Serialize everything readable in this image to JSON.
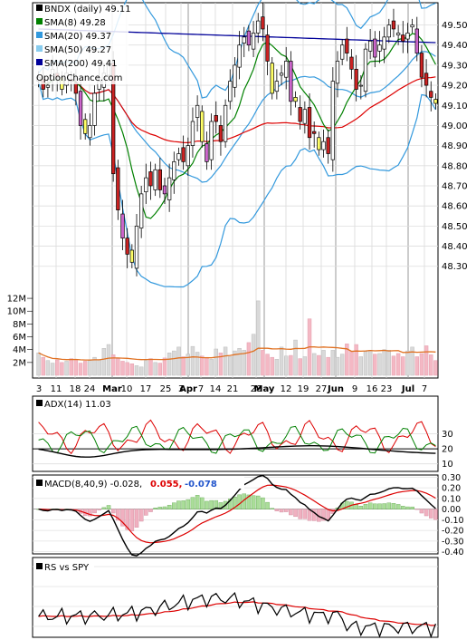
{
  "chart_data": [
    {
      "type": "candlestick",
      "title": "BNDX (daily) 49.11",
      "watermark": "OptionChance.com",
      "legend": [
        {
          "label": "BNDX (daily) 49.11",
          "color": "#000000"
        },
        {
          "label": "SMA(8) 49.28",
          "color": "#008000"
        },
        {
          "label": "SMA(20) 49.37",
          "color": "#3399dd"
        },
        {
          "label": "SMA(50) 49.27",
          "color": "#88ccee"
        },
        {
          "label": "SMA(200) 49.41",
          "color": "#000099"
        }
      ],
      "y_ticks": [
        "49.50",
        "49.40",
        "49.30",
        "49.20",
        "49.10",
        "49.00",
        "48.90",
        "48.80",
        "48.70",
        "48.60",
        "48.50",
        "48.40",
        "48.30"
      ],
      "ylim": [
        48.15,
        49.57
      ],
      "x_ticks": [
        "3",
        "11",
        "18",
        "24",
        "Mar",
        "10",
        "17",
        "25",
        "3",
        "Apr",
        "7",
        "14",
        "21",
        "28",
        "May",
        "12",
        "19",
        "27",
        "Jun",
        "9",
        "16",
        "23",
        "Jul",
        "7"
      ],
      "x_tick_bold": [
        "Mar",
        "Apr",
        "May",
        "Jun",
        "Jul"
      ],
      "volume_ticks": [
        "12M",
        "10M",
        "8M",
        "6M",
        "4M",
        "2M"
      ],
      "volume_lim": [
        0,
        13000000
      ],
      "close": [
        49.24,
        49.18,
        49.2,
        49.28,
        49.24,
        49.18,
        49.26,
        49.22,
        49.16,
        49.0,
        48.96,
        49.0,
        49.16,
        49.22,
        49.26,
        49.3,
        48.76,
        48.58,
        48.44,
        48.36,
        48.32,
        48.5,
        48.66,
        48.74,
        48.7,
        48.78,
        48.68,
        48.66,
        48.74,
        48.82,
        48.86,
        48.82,
        48.9,
        49.02,
        49.1,
        48.92,
        48.82,
        49.02,
        49.02,
        48.92,
        49.1,
        49.22,
        49.3,
        49.4,
        49.44,
        49.4,
        49.46,
        49.52,
        49.48,
        49.32,
        49.16,
        49.22,
        49.26,
        49.32,
        49.12,
        49.12,
        49.02,
        49.08,
        48.94,
        48.96,
        48.88,
        48.92,
        48.86,
        49.22,
        49.32,
        49.4,
        49.36,
        49.28,
        49.18,
        49.2,
        49.38,
        49.42,
        49.34,
        49.4,
        49.44,
        49.5,
        49.48,
        49.46,
        49.42,
        49.46,
        49.5,
        49.36,
        49.24,
        49.2,
        49.14,
        49.11
      ],
      "volume": [
        3.5,
        2.8,
        2.3,
        1.9,
        2.4,
        2.0,
        2.2,
        2.6,
        2.5,
        1.9,
        2.2,
        2.3,
        2.8,
        2.4,
        4.2,
        4.8,
        3.2,
        2.6,
        2.2,
        2.0,
        1.8,
        1.5,
        1.3,
        2.3,
        2.6,
        2.0,
        1.9,
        2.7,
        3.5,
        3.8,
        4.4,
        2.9,
        3.3,
        4.5,
        3.6,
        3.0,
        2.8,
        2.5,
        4.1,
        3.5,
        4.4,
        2.9,
        3.8,
        4.2,
        3.9,
        5.1,
        6.4,
        11.6,
        3.9,
        3.3,
        2.8,
        2.5,
        4.4,
        3.0,
        3.1,
        5.5,
        2.6,
        2.9,
        8.8,
        3.4,
        3.1,
        3.9,
        2.8,
        3.9,
        2.8,
        3.3,
        4.9,
        3.8,
        4.8,
        2.9,
        3.7,
        3.9,
        3.3,
        3.4,
        4.0,
        3.9,
        3.0,
        3.4,
        2.9,
        3.8,
        4.4,
        2.9,
        3.4,
        4.6,
        3.2,
        2.3
      ]
    },
    {
      "type": "line",
      "title": "ADX(14) 11.03",
      "y_ticks": [
        "30",
        "20",
        "10"
      ],
      "ylim": [
        5,
        55
      ]
    },
    {
      "type": "line",
      "title": "MACD(8,40,9) -0.028,",
      "values_text": [
        "0.055,",
        "-0.078"
      ],
      "value_colors": [
        "#dd0000",
        "#2255cc"
      ],
      "y_ticks": [
        "0.30",
        "0.20",
        "0.10",
        "0.00",
        "-0.10",
        "-0.20",
        "-0.30",
        "-0.40"
      ],
      "ylim": [
        -0.42,
        0.32
      ]
    },
    {
      "type": "line",
      "title": "RS vs SPY"
    }
  ]
}
